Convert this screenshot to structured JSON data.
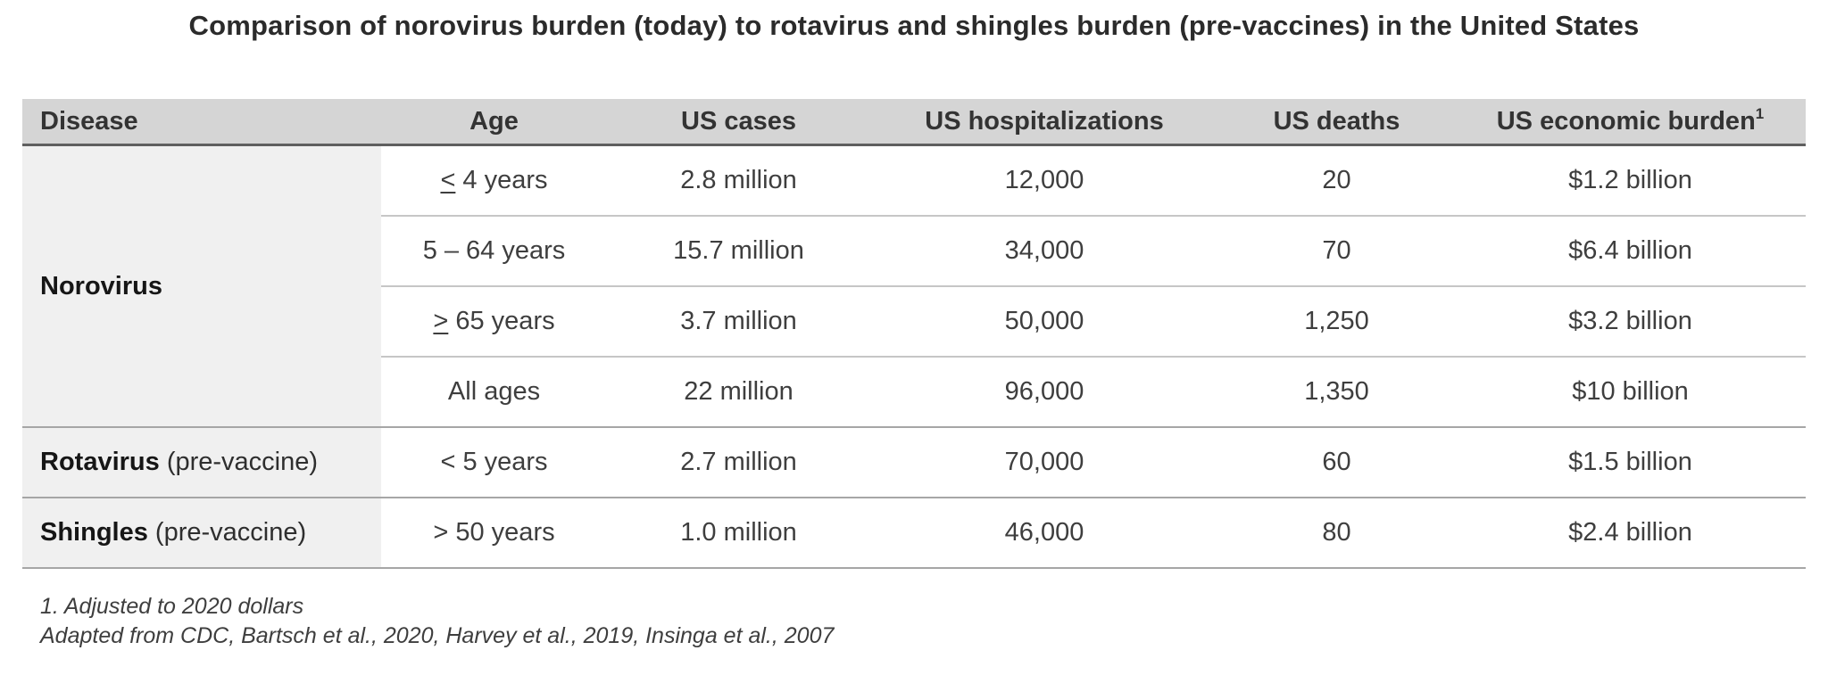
{
  "chart_data": {
    "type": "table",
    "title": "Comparison of norovirus burden (today) to rotavirus and shingles burden (pre-vaccines) in the United States",
    "columns": [
      {
        "label": "Disease"
      },
      {
        "label": "Age"
      },
      {
        "label": "US cases"
      },
      {
        "label": "US hospitalizations"
      },
      {
        "label": "US deaths"
      },
      {
        "label": "US economic burden",
        "footnote_marker": "1"
      }
    ],
    "groups": [
      {
        "disease": "Norovirus",
        "disease_note": "",
        "rows": [
          {
            "age": "≤ 4 years",
            "us_cases": "2.8 million",
            "us_hospitalizations": "12,000",
            "us_deaths": "20",
            "us_economic_burden": "$1.2 billion"
          },
          {
            "age": "5 – 64 years",
            "us_cases": "15.7 million",
            "us_hospitalizations": "34,000",
            "us_deaths": "70",
            "us_economic_burden": "$6.4 billion"
          },
          {
            "age": "≥ 65 years",
            "us_cases": "3.7 million",
            "us_hospitalizations": "50,000",
            "us_deaths": "1,250",
            "us_economic_burden": "$3.2 billion"
          },
          {
            "age": "All ages",
            "us_cases": "22 million",
            "us_hospitalizations": "96,000",
            "us_deaths": "1,350",
            "us_economic_burden": "$10 billion"
          }
        ]
      },
      {
        "disease": "Rotavirus",
        "disease_note": "(pre-vaccine)",
        "rows": [
          {
            "age": "< 5 years",
            "us_cases": "2.7 million",
            "us_hospitalizations": "70,000",
            "us_deaths": "60",
            "us_economic_burden": "$1.5 billion"
          }
        ]
      },
      {
        "disease": "Shingles",
        "disease_note": "(pre-vaccine)",
        "rows": [
          {
            "age": "> 50 years",
            "us_cases": "1.0 million",
            "us_hospitalizations": "46,000",
            "us_deaths": "80",
            "us_economic_burden": "$2.4 billion"
          }
        ]
      }
    ],
    "footnotes": [
      "1. Adjusted to 2020 dollars",
      "Adapted from CDC, Bartsch et al., 2020, Harvey et al., 2019, Insinga et al., 2007"
    ],
    "layout": {
      "grid": "off",
      "header_bg": "#d5d5d5",
      "disease_column_bg": "#f0f0f0",
      "header_rule_color": "#5f5f5f",
      "group_divider_color": "#a6a6a6",
      "inner_divider_color": "#c6c6c6"
    }
  }
}
